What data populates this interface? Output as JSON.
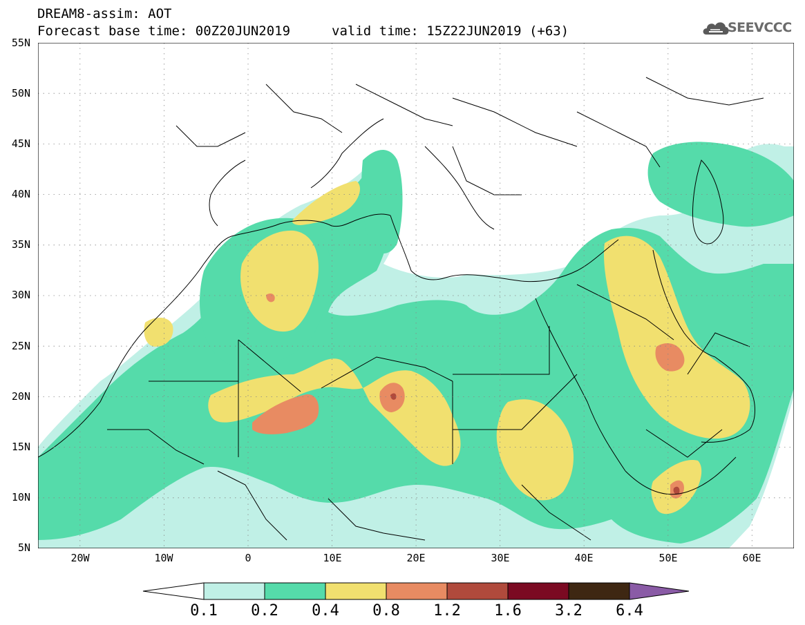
{
  "title": {
    "line1": "DREAM8-assim: AOT",
    "line2": "Forecast base time: 00Z20JUN2019",
    "line2b": "valid time: 15Z22JUN2019 (+63)"
  },
  "logo": {
    "text": "SEEVCCC",
    "icon": "cloud-icon"
  },
  "map": {
    "projection": "equirectangular",
    "lon_range": [
      -25,
      65
    ],
    "lat_range": [
      5,
      55
    ],
    "lat_ticks": [
      "55N",
      "50N",
      "45N",
      "40N",
      "35N",
      "30N",
      "25N",
      "20N",
      "15N",
      "10N",
      "5N"
    ],
    "lon_ticks": [
      "20W",
      "10W",
      "0",
      "10E",
      "20E",
      "30E",
      "40E",
      "50E",
      "60E"
    ],
    "gridlines": "dotted",
    "colors": {
      "c01": "#c0f0e6",
      "c02": "#55dbaa",
      "c04": "#f1e06f",
      "c08": "#e88b62",
      "c12": "#b04a3c",
      "c16": "#7b0a22",
      "c32": "#3e2712",
      "c64": "#8a5ba6"
    }
  },
  "colorbar": {
    "labels": [
      "0.1",
      "0.2",
      "0.4",
      "0.8",
      "1.2",
      "1.6",
      "3.2",
      "6.4"
    ],
    "colors": [
      "#c0f0e6",
      "#55dbaa",
      "#f1e06f",
      "#e88b62",
      "#b04a3c",
      "#7b0a22",
      "#3e2712"
    ],
    "under_color": "#ffffff",
    "over_color": "#8a5ba6"
  }
}
